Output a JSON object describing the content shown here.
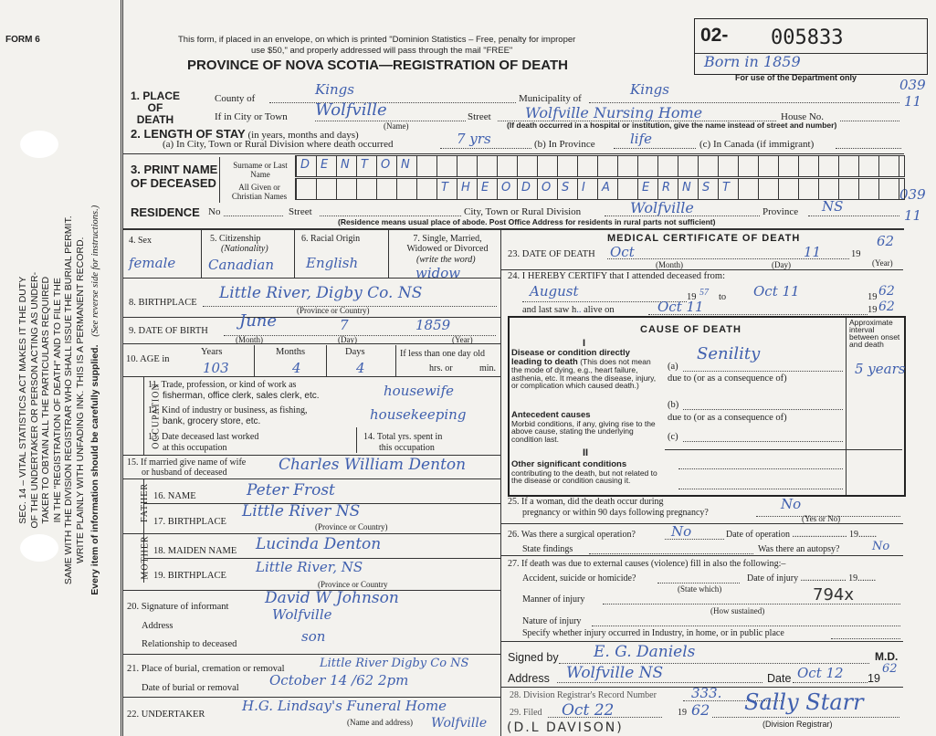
{
  "form_id": "FORM 6",
  "margin": {
    "lines": [
      "SEC. 14 – VITAL STATISTICS ACT MAKES IT THE DUTY",
      "OF THE UNDERTAKER OR PERSON ACTING AS UNDER-",
      "TAKER TO OBTAIN ALL THE PARTICULARS REQUIRED",
      "IN THE \"REGISTRATION OF DEATH\" AND TO FILE THE",
      "SAME WITH THE DIVISION REGISTRAR WHO SHALL ISSUE THE BURIAL PERMIT.",
      "WRITE PLAINLY WITH UNFADING INK. THIS IS A PERMANENT RECORD."
    ],
    "see_reverse": "(See reverse side for instructions.)",
    "every_item": "Every item of information should be carefully supplied."
  },
  "header": {
    "notice1": "This form, if placed in an envelope, on which is printed \"Dominion Statistics – Free, penalty for improper",
    "notice2": "use $50,\" and properly addressed will pass through the mail \"FREE\"",
    "title": "PROVINCE OF NOVA SCOTIA—REGISTRATION OF DEATH",
    "reg_prefix": "02-",
    "reg_number": "005833",
    "dept_note": "Born in 1859",
    "dept_label": "For use of the Department only",
    "code1": "039",
    "code1b": "11",
    "code2": "039",
    "code2b": "11"
  },
  "place": {
    "label": [
      "1. PLACE",
      "OF",
      "DEATH"
    ],
    "county_label": "County of",
    "county": "Kings",
    "municipality_label": "Municipality of",
    "municipality": "Kings",
    "city_label": "If in City or Town",
    "city": "Wolfville",
    "name_note": "(Name)",
    "street_label": "Street",
    "street": "Wolfville Nursing Home",
    "house_label": "House No.",
    "hospital_note": "(If death occurred in a hospital or institution, give the name instead of street and number)"
  },
  "stay": {
    "label": "2. LENGTH OF STAY",
    "label_note": "(in years, months and days)",
    "a_label": "(a) In City, Town or Rural Division where death occurred",
    "a": "7 yrs",
    "b_label": "(b) In Province",
    "b": "life",
    "c_label": "(c) In Canada (if immigrant)"
  },
  "name": {
    "label1": "3. PRINT NAME",
    "label2": "OF DECEASED",
    "surname_label": "Surname or Last Name",
    "given_label": "All Given or Christian Names",
    "surname_letters": [
      "D",
      "E",
      "N",
      "T",
      "O",
      "N"
    ],
    "given_letters": [
      "T",
      "H",
      "E",
      "O",
      "D",
      "O",
      "S",
      "I",
      "A",
      "",
      "E",
      "R",
      "N",
      "S",
      "T"
    ]
  },
  "residence": {
    "label": "RESIDENCE",
    "no_label": "No",
    "street_label": "Street",
    "city_label": "City, Town or Rural Division",
    "city": "Wolfville",
    "province_label": "Province",
    "province": "NS",
    "note": "(Residence means usual place of abode. Post Office Address for residents in rural parts not sufficient)"
  },
  "personal": {
    "sex_label": "4. Sex",
    "sex": "female",
    "citizenship_label": "5. Citizenship",
    "citizenship_note": "(Nationality)",
    "citizenship": "Canadian",
    "racial_label": "6. Racial Origin",
    "racial": "English",
    "marital_label": "7. Single, Married, Widowed or Divorced",
    "marital_note": "(write the word)",
    "marital": "widow",
    "birthplace_label": "8. BIRTHPLACE",
    "birthplace": "Little River, Digby Co. NS",
    "prov_note": "(Province or Country)",
    "dob_label": "9. DATE OF BIRTH",
    "dob_month": "June",
    "dob_day": "7",
    "dob_year": "1859",
    "month": "(Month)",
    "day": "(Day)",
    "year": "(Year)",
    "age_label": "10. AGE in",
    "years_label": "Years",
    "years": "103",
    "months_label": "Months",
    "months": "4",
    "days_label": "Days",
    "days": "4",
    "less_label": "If less than one day old",
    "hrs": "hrs. or",
    "min": "min."
  },
  "occupation": {
    "side": "OCCUPATION",
    "q11a": "11. Trade, profession, or kind of work as",
    "q11b": "fisherman, office clerk, sales clerk, etc.",
    "a11": "housewife",
    "q12a": "12. Kind of industry or business, as fishing,",
    "q12b": "bank, grocery store, etc.",
    "a12": "housekeeping",
    "q13a": "13. Date deceased last worked",
    "q13b": "at this occupation",
    "q14a": "14. Total yrs. spent in",
    "q14b": "this occupation"
  },
  "spouse": {
    "q1": "15. If married give name of wife",
    "q2": "or husband of deceased",
    "value": "Charles William Denton"
  },
  "father": {
    "side": "FATHER",
    "name_label": "16. NAME",
    "name": "Peter Frost",
    "bp_label": "17. BIRTHPLACE",
    "bp": "Little River NS",
    "note": "(Province or Country)"
  },
  "mother": {
    "side": "MOTHER",
    "name_label": "18. MAIDEN NAME",
    "name": "Lucinda Denton",
    "bp_label": "19. BIRTHPLACE",
    "bp": "Little River, NS",
    "note": "(Province or Country"
  },
  "informant": {
    "sig_label": "20. Signature of informant",
    "sig": "David W Johnson",
    "addr_label": "Address",
    "addr": "Wolfville",
    "rel_label": "Relationship to deceased",
    "rel": "son"
  },
  "burial": {
    "place_label": "21. Place of burial, cremation or removal",
    "place": "Little River Digby Co NS",
    "date_label": "Date of burial or removal",
    "date": "October 14 /62  2pm"
  },
  "undertaker": {
    "label": "22. UNDERTAKER",
    "value": "H.G. Lindsay's Funeral Home",
    "value2": "Wolfville",
    "note": "(Name and address)"
  },
  "medical": {
    "title": "MEDICAL CERTIFICATE OF DEATH",
    "dod_label": "23. DATE OF DEATH",
    "dod_month": "Oct",
    "dod_day": "11",
    "dod_year": "62",
    "nineteen": "19",
    "certify": "24. I HEREBY CERTIFY that I attended deceased from:",
    "from": "August",
    "from_year": "57",
    "to": "to",
    "to_date": "Oct 11",
    "to_year": "62",
    "last_saw_label": "and last saw h",
    "last_saw_mid": "alive on",
    "last_saw": "Oct 11",
    "last_saw_year": "62"
  },
  "cause": {
    "title": "CAUSE OF DEATH",
    "interval_label": "Approximate interval between onset and death",
    "roman1": "I",
    "direct_title": "Disease or condition directly leading to death",
    "direct_note": "(This does not mean the mode of dying, e.g., heart failure, asthenia, etc. It means the disease, injury, or complication which caused death.)",
    "a_label": "(a)",
    "a": "Senility",
    "interval_a": "5 years",
    "due_to": "due to (or as a consequence of)",
    "antecedent_title": "Antecedent causes",
    "antecedent_note": "Morbid conditions, if any, giving rise to the above cause, stating the underlying condition last.",
    "b_label": "(b)",
    "c_label": "(c)",
    "roman2": "II",
    "other_title": "Other significant conditions",
    "other_note": "contributing to the death, but not related to the disease or condition causing it."
  },
  "q25": {
    "l1": "25. If a woman, did the death occur during",
    "l2": "pregnancy or within 90 days following pregnancy?",
    "value": "No",
    "note": "(Yes or No)"
  },
  "q26": {
    "surg_label": "26. Was there a surgical operation?",
    "surg": "No",
    "date_label": "Date of operation",
    "findings_label": "State findings",
    "autopsy_label": "Was there an autopsy?",
    "autopsy": "No"
  },
  "q27": {
    "title": "27. If death was due to external causes (violence) fill in also the following:–",
    "accident_label": "Accident, suicide or homicide?",
    "state_which": "(State which)",
    "injury_date_label": "Date of injury",
    "code": "794x",
    "manner_label": "Manner of injury",
    "how": "(How sustained)",
    "nature_label": "Nature of injury",
    "specify_label": "Specify whether injury occurred in Industry, in home, or in public place"
  },
  "signature": {
    "signed_label": "Signed by",
    "signed": "E. G. Daniels",
    "md": "M.D.",
    "addr_label": "Address",
    "addr": "Wolfville NS",
    "date_label": "Date",
    "date": "Oct 12",
    "year": "62"
  },
  "registrar": {
    "q28": "28. Division Registrar's Record Number",
    "record": "333.",
    "q29": "29. Filed",
    "filed": "Oct 22",
    "filed_year": "62",
    "registrar": "Sally Starr",
    "registrar_note": "(Division Registrar)",
    "stamp": "(D.L DAVISON)"
  }
}
